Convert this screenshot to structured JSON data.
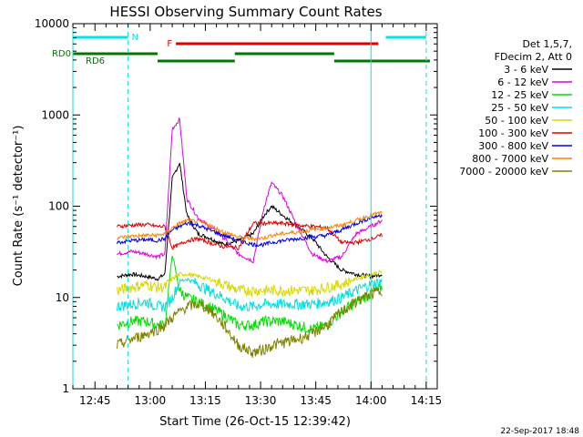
{
  "chart_data": {
    "type": "line",
    "title": "HESSI Observing Summary Count Rates",
    "xlabel": "Start Time (26-Oct-15 12:39:42)",
    "ylabel": "Count Rate (s⁻¹ detector⁻¹)",
    "yscale": "log",
    "xlim": [
      "12:39",
      "14:18"
    ],
    "ylim": [
      1,
      10000
    ],
    "xticks": [
      "12:45",
      "13:00",
      "13:15",
      "13:30",
      "13:45",
      "14:00",
      "14:15"
    ],
    "yticks": [
      "1",
      "10",
      "100",
      "1000",
      "10000"
    ],
    "legend_title": [
      "Det 1,5,7,",
      "FDecim 2, Att 0"
    ],
    "legend_position": "right",
    "footer": "22-Sep-2017 18:48",
    "data_gaps": [
      [
        "12:39",
        "12:51"
      ],
      [
        "14:05",
        "14:18"
      ]
    ],
    "annotations": [
      {
        "label": "N",
        "color": "#00e5e5",
        "segments": [
          [
            "12:39",
            "12:54"
          ],
          [
            "14:04",
            "14:15"
          ]
        ],
        "level": "top"
      },
      {
        "label": "F",
        "color": "#e00000",
        "segments": [
          [
            "13:07",
            "14:02"
          ]
        ],
        "level": "upper"
      },
      {
        "label": "RD0",
        "color": "#007700",
        "segments": [
          [
            "12:39",
            "13:02"
          ],
          [
            "13:23",
            "13:50"
          ]
        ],
        "level": "middle"
      },
      {
        "label": "RD6",
        "color": "#007700",
        "segments": [
          [
            "13:02",
            "13:23"
          ],
          [
            "13:50",
            "14:16"
          ]
        ],
        "level": "lower"
      }
    ],
    "vertical_lines": [
      {
        "time": "12:39",
        "color": "#00e5e5",
        "style": "solid"
      },
      {
        "time": "12:54",
        "color": "#00e5e5",
        "style": "dashed"
      },
      {
        "time": "14:00",
        "color": "#00e5e5",
        "style": "solid"
      },
      {
        "time": "14:15",
        "color": "#00e5e5",
        "style": "dashed"
      }
    ],
    "x": [
      "12:51",
      "12:55",
      "12:59",
      "13:02",
      "13:04",
      "13:06",
      "13:08",
      "13:10",
      "13:13",
      "13:16",
      "13:20",
      "13:24",
      "13:28",
      "13:31",
      "13:33",
      "13:36",
      "13:40",
      "13:44",
      "13:48",
      "13:52",
      "13:56",
      "14:00",
      "14:03"
    ],
    "series": [
      {
        "name": "3 - 6 keV",
        "color": "#000000",
        "values": [
          17,
          18,
          17,
          16,
          18,
          200,
          300,
          80,
          50,
          45,
          38,
          42,
          50,
          80,
          100,
          80,
          60,
          45,
          28,
          20,
          18,
          17,
          18
        ]
      },
      {
        "name": "6 - 12 keV",
        "color": "#e000e0",
        "values": [
          30,
          32,
          30,
          28,
          30,
          700,
          900,
          120,
          75,
          60,
          45,
          30,
          25,
          100,
          180,
          130,
          60,
          30,
          25,
          28,
          50,
          60,
          70
        ]
      },
      {
        "name": "12 - 25 keV",
        "color": "#00e000",
        "values": [
          5,
          5.5,
          5.5,
          5,
          5,
          30,
          12,
          10,
          9,
          8,
          6.5,
          5,
          5,
          5.5,
          5.5,
          5.5,
          5,
          4.5,
          5,
          7,
          9,
          11,
          13
        ]
      },
      {
        "name": "25 - 50 keV",
        "color": "#00e0e0",
        "values": [
          8,
          8.5,
          9,
          8,
          8,
          10,
          15,
          16,
          14,
          12,
          10,
          8,
          8,
          8.5,
          8.5,
          8.5,
          8.5,
          8.5,
          9,
          10,
          12,
          14,
          15
        ]
      },
      {
        "name": "50 - 100 keV",
        "color": "#d8d800",
        "values": [
          12,
          13,
          14,
          13,
          13,
          16,
          18,
          18,
          17,
          16,
          14,
          12,
          12,
          12,
          12,
          12,
          12,
          12,
          13,
          14,
          16,
          18,
          19
        ]
      },
      {
        "name": "100 - 300 keV",
        "color": "#e00000",
        "values": [
          60,
          62,
          63,
          60,
          60,
          35,
          38,
          42,
          44,
          40,
          36,
          35,
          65,
          65,
          65,
          65,
          62,
          60,
          58,
          40,
          40,
          44,
          48
        ]
      },
      {
        "name": "300 - 800 keV",
        "color": "#0000e0",
        "values": [
          40,
          42,
          43,
          42,
          44,
          55,
          60,
          65,
          62,
          55,
          48,
          42,
          38,
          38,
          40,
          42,
          44,
          46,
          48,
          55,
          65,
          75,
          80
        ]
      },
      {
        "name": "800 - 7000 keV",
        "color": "#ff8000",
        "values": [
          45,
          47,
          48,
          48,
          50,
          58,
          65,
          70,
          68,
          62,
          52,
          46,
          44,
          45,
          48,
          50,
          52,
          55,
          58,
          62,
          70,
          80,
          85
        ]
      },
      {
        "name": "7000 - 20000 keV",
        "color": "#808000",
        "values": [
          3,
          3.5,
          4,
          4.5,
          5,
          6,
          7,
          8,
          8.5,
          7.5,
          5,
          3,
          2.5,
          2.7,
          3,
          3.2,
          3.5,
          4,
          5,
          7,
          9,
          11,
          12
        ]
      }
    ]
  }
}
